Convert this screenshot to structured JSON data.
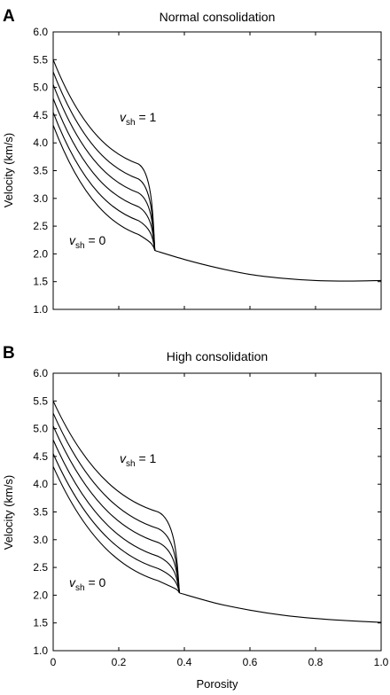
{
  "figure": {
    "y_axis_label": "Velocity (km/s)",
    "x_axis_label": "Porosity",
    "x_tick_labels": [
      "0",
      "0.2",
      "0.4",
      "0.6",
      "0.8",
      "1.0"
    ],
    "y_tick_labels": [
      "1.0",
      "1.5",
      "2.0",
      "2.5",
      "3.0",
      "3.5",
      "4.0",
      "4.5",
      "5.0",
      "5.5",
      "6.0"
    ],
    "annotation_top": {
      "var": "v",
      "sub": "sh",
      "rest": " = 1"
    },
    "annotation_bottom": {
      "var": "v",
      "sub": "sh",
      "rest": " = 0"
    }
  },
  "chart_data": [
    {
      "type": "line",
      "panel_letter": "A",
      "title": "Normal consolidation",
      "xlabel": "",
      "ylabel": "Velocity (km/s)",
      "xlim": [
        0,
        1.0
      ],
      "ylim": [
        1.0,
        6.0
      ],
      "grid": false,
      "critical_porosity": 0.31,
      "critical_velocity": 2.06,
      "series": [
        {
          "start_velocity": 5.5,
          "knee": [
            0.26,
            3.62
          ]
        },
        {
          "start_velocity": 5.28,
          "knee": [
            0.26,
            3.35
          ]
        },
        {
          "start_velocity": 5.05,
          "knee": [
            0.26,
            3.1
          ]
        },
        {
          "start_velocity": 4.8,
          "knee": [
            0.26,
            2.85
          ]
        },
        {
          "start_velocity": 4.55,
          "knee": [
            0.26,
            2.6
          ]
        },
        {
          "start_velocity": 4.32,
          "knee": [
            0.26,
            2.35
          ]
        }
      ],
      "common_tail": {
        "x": [
          0.31,
          0.4,
          0.5,
          0.6,
          0.7,
          0.8,
          0.9,
          1.0
        ],
        "y": [
          2.06,
          1.9,
          1.75,
          1.63,
          1.56,
          1.52,
          1.51,
          1.52
        ]
      }
    },
    {
      "type": "line",
      "panel_letter": "B",
      "title": "High consolidation",
      "xlabel": "Porosity",
      "ylabel": "Velocity (km/s)",
      "xlim": [
        0,
        1.0
      ],
      "ylim": [
        1.0,
        6.0
      ],
      "grid": false,
      "critical_porosity": 0.385,
      "critical_velocity": 2.04,
      "series": [
        {
          "start_velocity": 5.5,
          "knee": [
            0.32,
            3.5
          ]
        },
        {
          "start_velocity": 5.28,
          "knee": [
            0.32,
            3.2
          ]
        },
        {
          "start_velocity": 5.05,
          "knee": [
            0.32,
            2.95
          ]
        },
        {
          "start_velocity": 4.8,
          "knee": [
            0.32,
            2.7
          ]
        },
        {
          "start_velocity": 4.55,
          "knee": [
            0.32,
            2.48
          ]
        },
        {
          "start_velocity": 4.32,
          "knee": [
            0.32,
            2.26
          ]
        }
      ],
      "common_tail": {
        "x": [
          0.385,
          0.5,
          0.6,
          0.7,
          0.8,
          0.9,
          1.0
        ],
        "y": [
          2.04,
          1.85,
          1.73,
          1.64,
          1.58,
          1.54,
          1.51
        ]
      }
    }
  ]
}
